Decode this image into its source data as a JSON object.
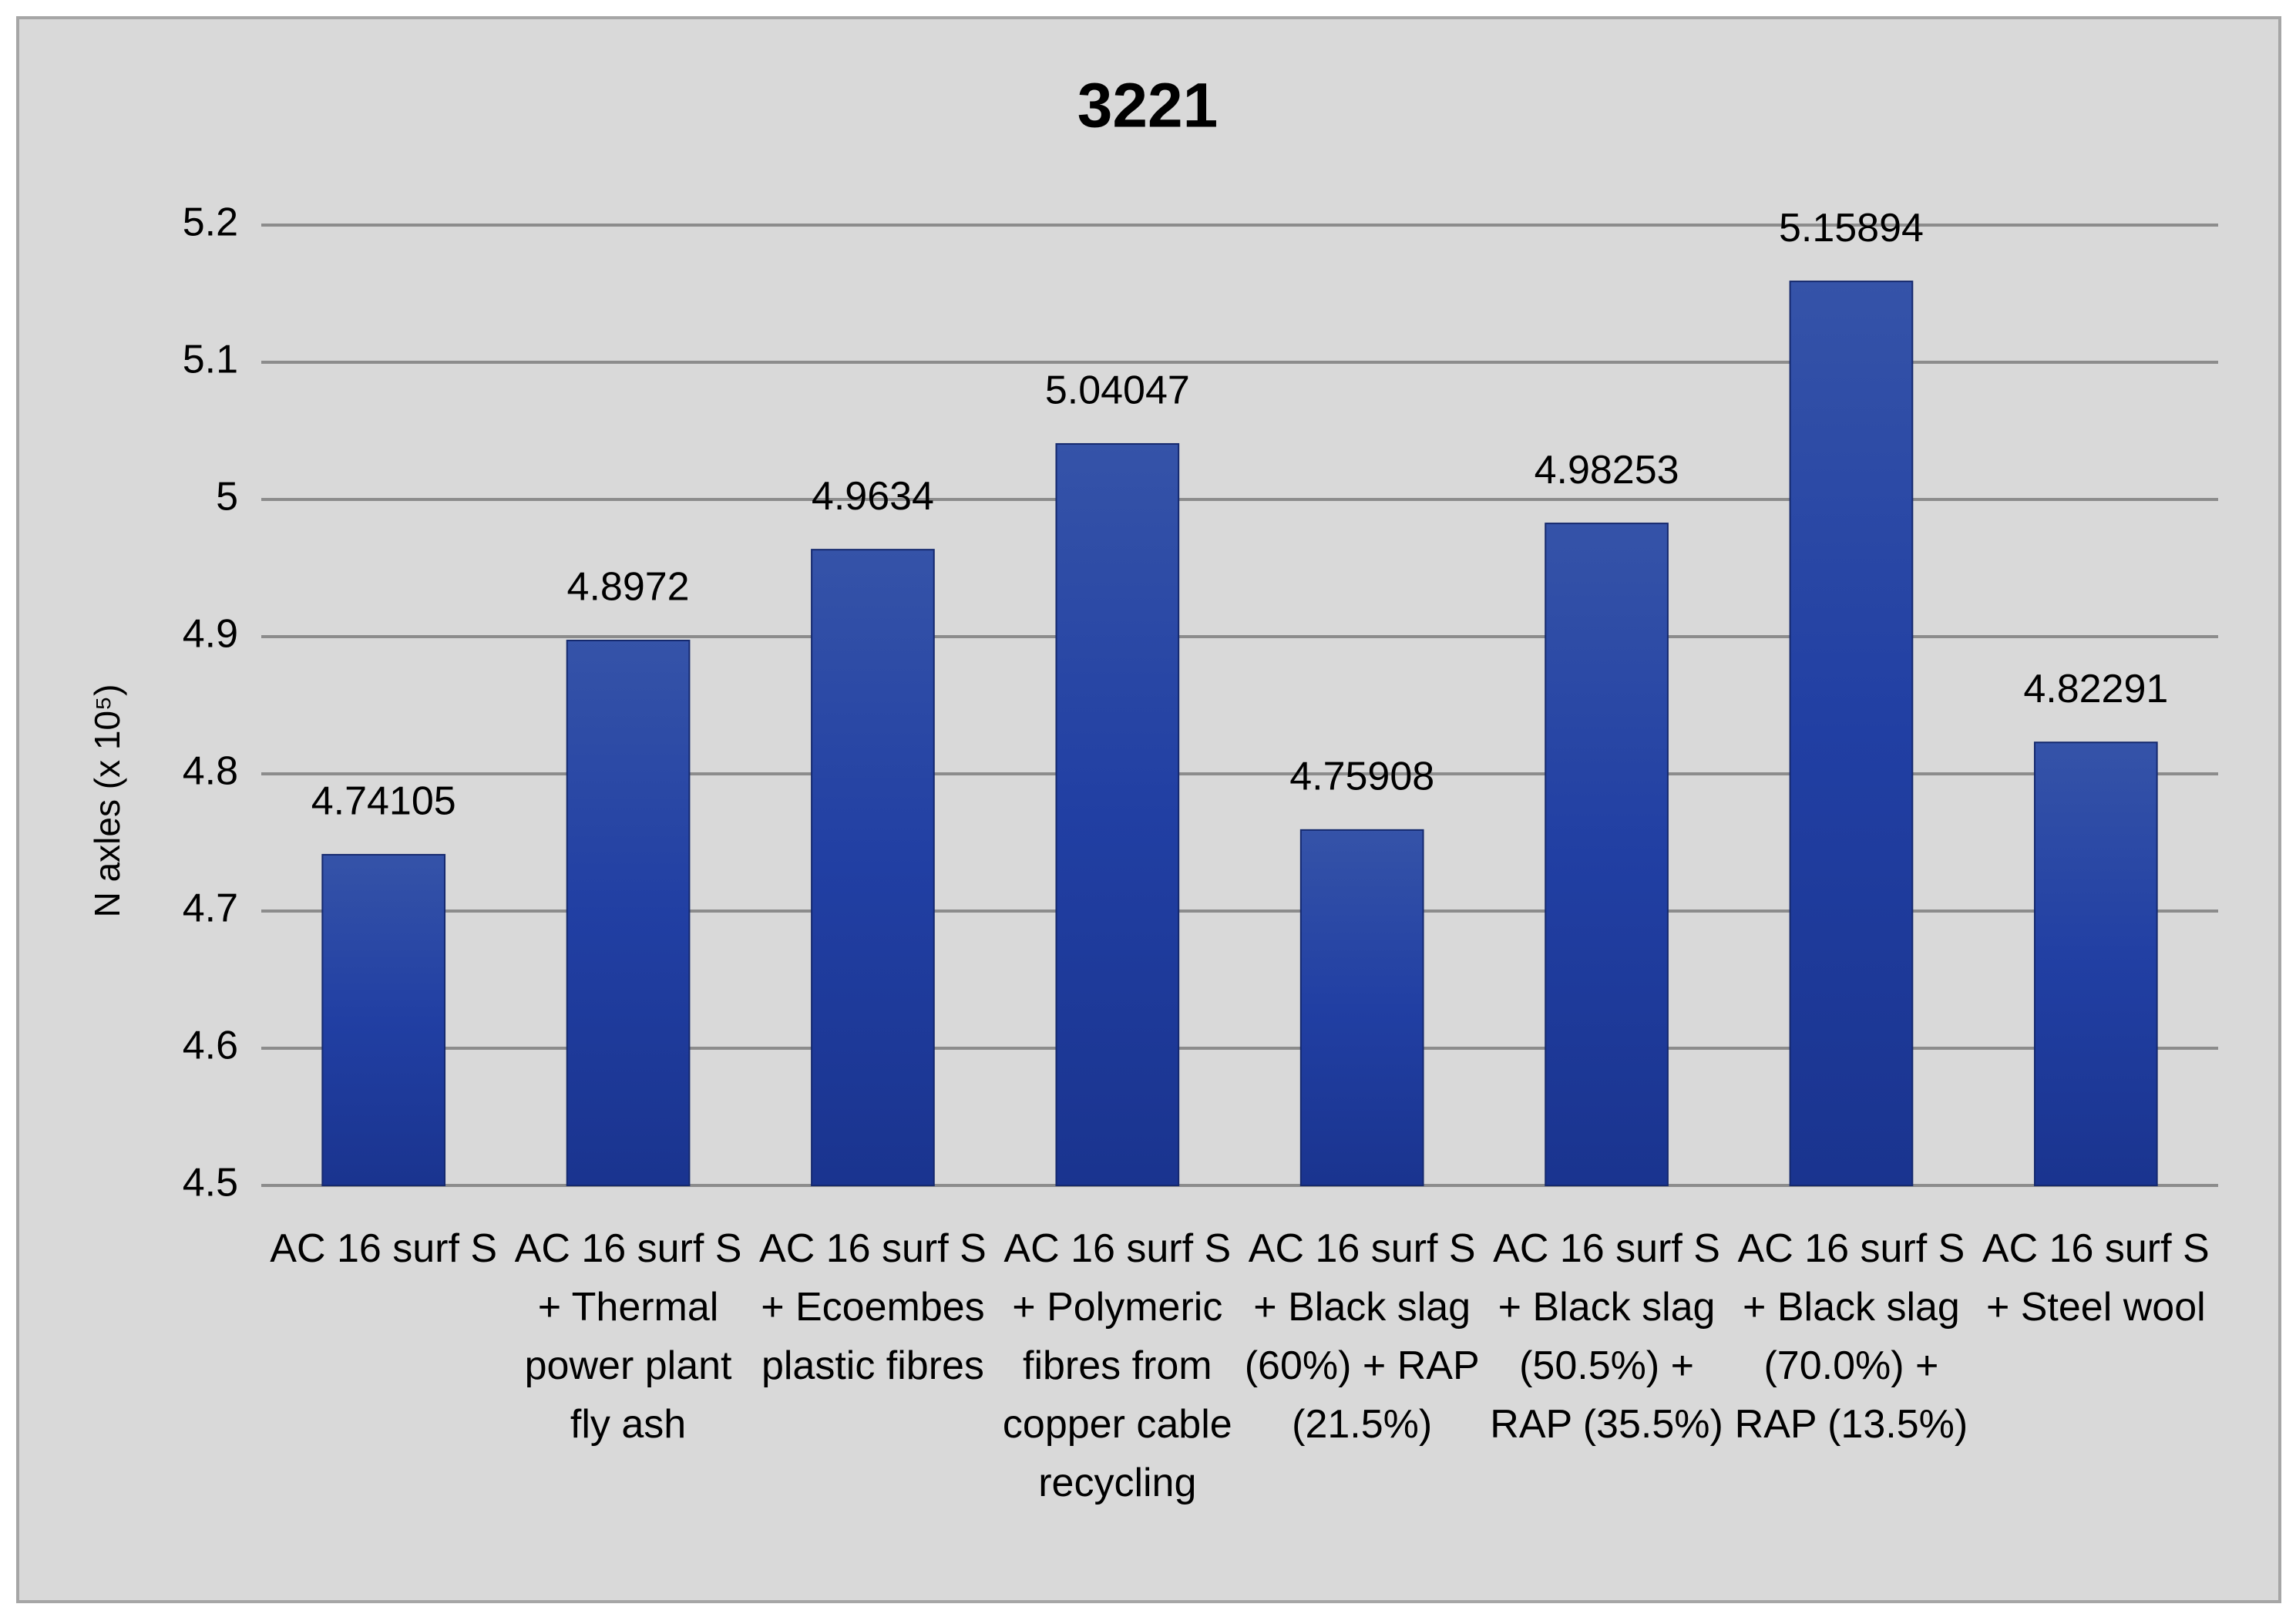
{
  "chart_data": {
    "type": "bar",
    "title": "3221",
    "ylabel": "N axles (x 10⁵)",
    "categories": [
      "AC 16 surf S",
      "AC 16 surf S + Thermal power plant fly ash",
      "AC 16 surf S + Ecoembes plastic fibres",
      "AC 16 surf S + Polymeric fibres from copper cable recycling",
      "AC 16 surf S + Black slag (60%) + RAP (21.5%)",
      "AC 16 surf S + Black slag (50.5%) + RAP (35.5%)",
      "AC 16 surf S + Black slag (70.0%) + RAP (13.5%)",
      "AC 16 surf S + Steel wool"
    ],
    "values": [
      4.74105,
      4.8972,
      4.9634,
      5.04047,
      4.75908,
      4.98253,
      5.15894,
      4.82291
    ],
    "color": "#2443a3",
    "ylim": [
      4.5,
      5.2
    ],
    "yticks": [
      4.5,
      4.6,
      4.7,
      4.8,
      4.9,
      5,
      5.1,
      5.2
    ],
    "grid": true
  }
}
